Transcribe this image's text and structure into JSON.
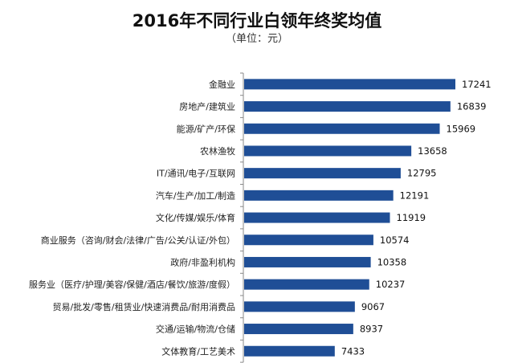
{
  "chart_data": {
    "type": "bar",
    "orientation": "horizontal",
    "title": "2016年不同行业白领年终奖均值",
    "subtitle": "（单位：元）",
    "xlabel": "",
    "ylabel": "",
    "categories": [
      "金融业",
      "房地产/建筑业",
      "能源/矿产/环保",
      "农林渔牧",
      "IT/通讯/电子/互联网",
      "汽车/生产/加工/制造",
      "文化/传媒/娱乐/体育",
      "商业服务（咨询/财会/法律/广告/公关/认证/外包）",
      "政府/非盈利机构",
      "服务业（医疗/护理/美容/保健/酒店/餐饮/旅游/度假）",
      "贸易/批发/零售/租赁业/快速消费品/耐用消费品",
      "交通/运输/物流/仓储",
      "文体教育/工艺美术"
    ],
    "values": [
      17241,
      16839,
      15969,
      13658,
      12795,
      12191,
      11919,
      10574,
      10358,
      10237,
      9067,
      8937,
      7433
    ],
    "xlim": [
      0,
      17241
    ],
    "grid": false,
    "bar_color": "#1f4e96",
    "data_labels": true
  }
}
